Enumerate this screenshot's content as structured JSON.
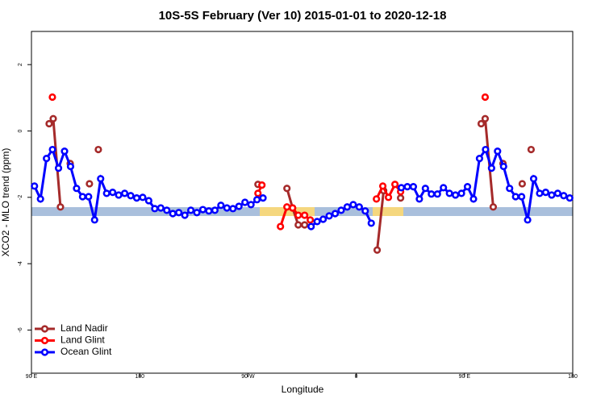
{
  "chart_data": {
    "type": "line",
    "title": "10S-5S February (Ver 10)   2015-01-01 to 2020-12-18",
    "xlabel": "Longitude",
    "ylabel": "XCO2 - MLO trend (ppm)",
    "xlim": [
      90,
      540
    ],
    "ylim": [
      -7.3,
      3
    ],
    "xticks": [
      {
        "value": 90,
        "label": "90 E"
      },
      180,
      {
        "value": 270,
        "label": "90 W"
      },
      {
        "value": 360,
        "label": "0"
      },
      {
        "value": 450,
        "label": "90 E"
      },
      {
        "value": 540,
        "label": "180"
      }
    ],
    "yticks": [
      -6,
      -4,
      -2,
      0,
      2
    ],
    "legend": "bottom-left",
    "series": [
      {
        "name": "Land Nadir",
        "color": "#a52a2a",
        "x": [
          104.7,
          108.1,
          114.1,
          null,
          122.2,
          null,
          138.2,
          null,
          145.6,
          null,
          278.3,
          null,
          302.4,
          307.1,
          311.8,
          317.1,
          null,
          377.4,
          382.8,
          null,
          396.9,
          null,
          463.9,
          467.2,
          473.9,
          null,
          482,
          null,
          498,
          null,
          505.4
        ],
        "values": [
          0.22,
          0.37,
          -2.29,
          null,
          -0.98,
          null,
          -1.59,
          null,
          -0.56,
          null,
          -1.61,
          null,
          -1.73,
          -2.32,
          -2.83,
          -2.83,
          null,
          -3.59,
          -1.8,
          null,
          -2.02,
          null,
          0.22,
          0.37,
          -2.29,
          null,
          -0.98,
          null,
          -1.59,
          null,
          -0.56
        ]
      },
      {
        "name": "Land Glint",
        "color": "#ff0000",
        "x": [
          107.4,
          null,
          278.3,
          281.6,
          null,
          297,
          302.4,
          307.1,
          311.8,
          317.1,
          321.8,
          null,
          376.8,
          382.1,
          386.8,
          392.2,
          396.9,
          null,
          467.2
        ],
        "values": [
          1.02,
          null,
          -1.88,
          -1.63,
          null,
          -2.88,
          -2.29,
          -2.32,
          -2.54,
          -2.54,
          -2.68,
          null,
          -2.05,
          -1.66,
          -2.0,
          -1.61,
          -1.83,
          null,
          1.02
        ]
      },
      {
        "name": "Ocean Glint",
        "color": "#0000ff",
        "x": [
          92.5,
          97.5,
          102.5,
          107.5,
          112.5,
          117.5,
          122.5,
          127.5,
          132.5,
          137.5,
          142.5,
          147.5,
          152.5,
          157.5,
          162.5,
          167.5,
          172.5,
          177.5,
          182.5,
          187.5,
          192.5,
          197.5,
          202.5,
          207.5,
          212.5,
          217.5,
          222.5,
          227.5,
          232.5,
          237.5,
          242.5,
          247.5,
          252.5,
          257.5,
          262.5,
          267.5,
          272.5,
          277.5,
          282.5,
          287.5,
          292.5,
          297.5,
          302.5,
          307.5,
          312.5,
          317.5,
          322.5,
          327.5,
          332.5,
          337.5,
          342.5,
          347.5,
          352.5,
          357.5,
          362.5,
          367.5,
          372.5,
          377.5,
          382.5,
          387.5,
          392.5,
          397.5,
          402.5,
          407.5,
          412.5,
          417.5,
          422.5,
          427.5,
          432.5,
          437.5,
          442.5,
          447.5,
          452.5,
          457.5,
          462.5,
          467.5,
          472.5,
          477.5,
          482.5,
          487.5,
          492.5,
          497.5,
          502.5,
          507.5,
          512.5,
          517.5,
          522.5,
          527.5,
          532.5,
          537.5
        ],
        "values": [
          -1.66,
          -2.05,
          -0.83,
          -0.56,
          -1.12,
          -0.61,
          -1.07,
          -1.73,
          -1.98,
          -1.98,
          -2.68,
          -1.44,
          -1.88,
          -1.85,
          -1.93,
          -1.88,
          -1.95,
          -2.02,
          -2.0,
          -2.1,
          -2.34,
          -2.32,
          -2.39,
          -2.49,
          -2.46,
          -2.54,
          -2.39,
          -2.46,
          -2.37,
          -2.41,
          -2.39,
          -2.24,
          -2.32,
          -2.34,
          -2.27,
          -2.15,
          -2.22,
          -2.07,
          -2.02,
          null,
          null,
          null,
          null,
          null,
          null,
          null,
          -2.88,
          -2.73,
          -2.66,
          -2.56,
          -2.49,
          -2.39,
          -2.29,
          -2.22,
          -2.29,
          -2.41,
          -2.78,
          null,
          null,
          null,
          null,
          -1.71,
          -1.68,
          -1.68,
          -2.05,
          -1.73,
          -1.9,
          -1.9,
          -1.71,
          -1.88,
          -1.93,
          -1.88,
          -1.68,
          -2.05,
          -0.83,
          -0.56,
          -1.12,
          -0.61,
          -1.07,
          -1.73,
          -1.98,
          -1.98,
          -2.68,
          -1.44,
          -1.88,
          -1.85,
          -1.93,
          -1.88,
          -1.95,
          -2.02
        ]
      }
    ]
  }
}
